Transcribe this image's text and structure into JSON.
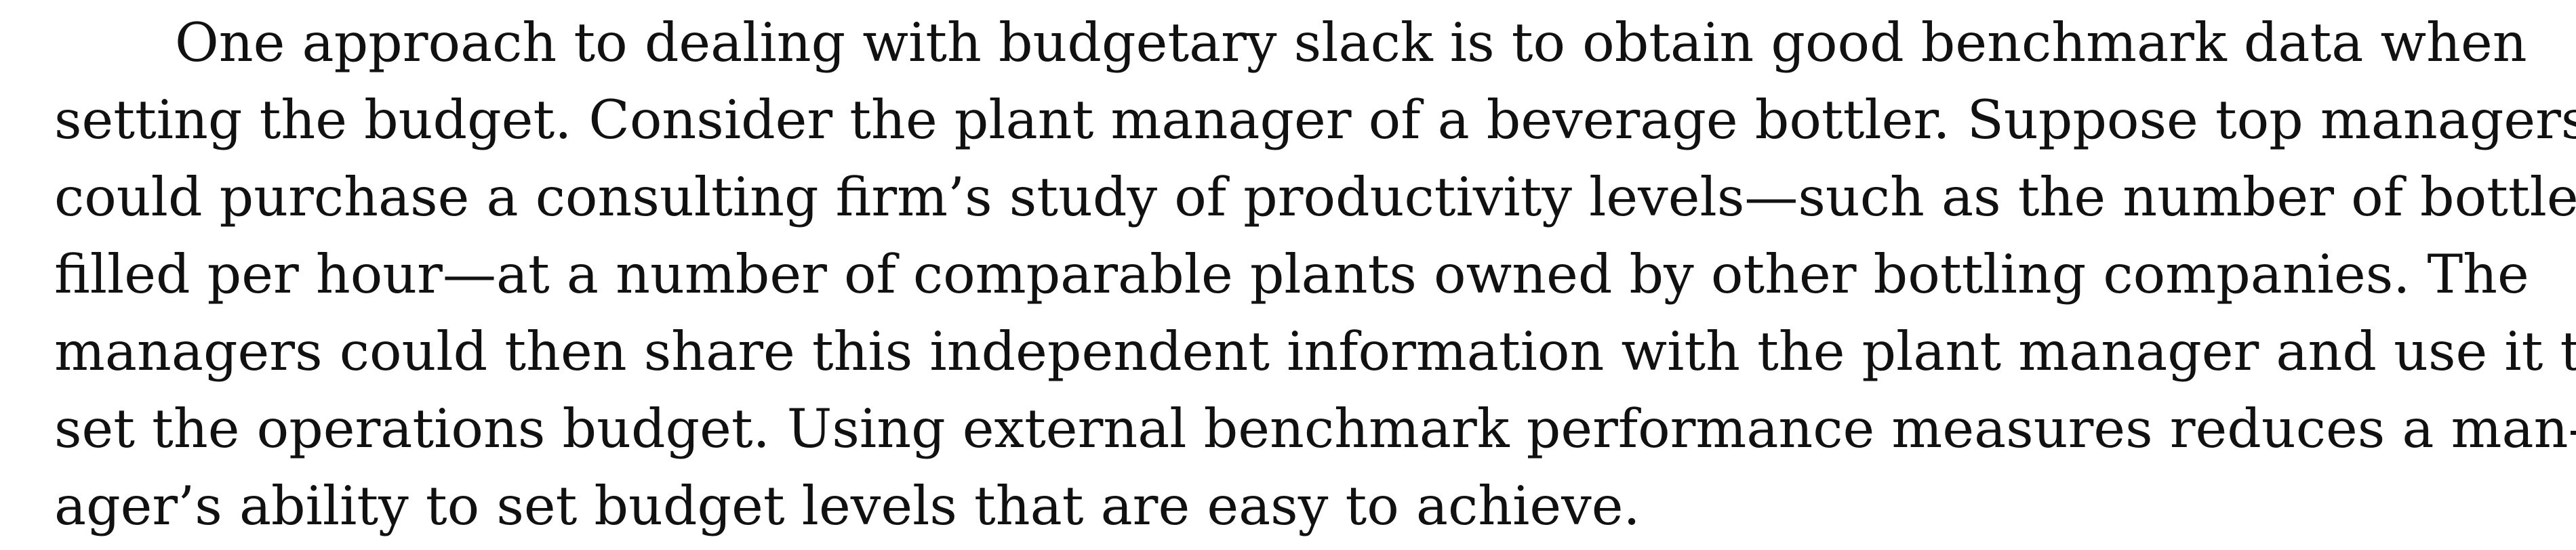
{
  "paragraph": {
    "lines": [
      "One approach to dealing with budgetary slack is to obtain good benchmark data when",
      "setting the budget. Consider the plant manager of a beverage bottler. Suppose top managers",
      "could purchase a consulting firm’s study of productivity levels—such as the number of bottles",
      "filled per hour—at a number of comparable plants owned by other bottling companies. The",
      "managers could then share this independent information with the plant manager and use it to",
      "set the operations budget. Using external benchmark performance measures reduces a man-",
      "ager’s ability to set budget levels that are easy to achieve."
    ]
  }
}
